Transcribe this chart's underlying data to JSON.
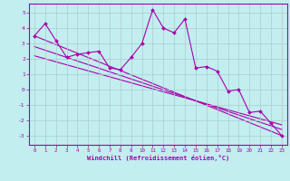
{
  "xlabel": "Windchill (Refroidissement éolien,°C)",
  "bg_color": "#c2eef0",
  "line_color": "#aa00aa",
  "grid_color": "#aacccc",
  "xlim": [
    -0.5,
    23.5
  ],
  "ylim": [
    -3.6,
    5.6
  ],
  "yticks": [
    -3,
    -2,
    -1,
    0,
    1,
    2,
    3,
    4,
    5
  ],
  "xticks": [
    0,
    1,
    2,
    3,
    4,
    5,
    6,
    7,
    8,
    9,
    10,
    11,
    12,
    13,
    14,
    15,
    16,
    17,
    18,
    19,
    20,
    21,
    22,
    23
  ],
  "series1_x": [
    0,
    1,
    2,
    3,
    4,
    5,
    6,
    7,
    8,
    9,
    10,
    11,
    12,
    13,
    14,
    15,
    16,
    17,
    18,
    19,
    20,
    21,
    22,
    23
  ],
  "series1_y": [
    3.5,
    4.3,
    3.2,
    2.1,
    2.3,
    2.4,
    2.5,
    1.4,
    1.3,
    2.1,
    3.0,
    5.2,
    4.0,
    3.7,
    4.6,
    1.4,
    1.5,
    1.2,
    -0.1,
    0.0,
    -1.5,
    -1.4,
    -2.2,
    -3.0
  ],
  "regline1_x": [
    0,
    23
  ],
  "regline1_y": [
    3.5,
    -3.0
  ],
  "regline2_x": [
    0,
    23
  ],
  "regline2_y": [
    2.8,
    -2.6
  ],
  "regline3_x": [
    0,
    23
  ],
  "regline3_y": [
    2.2,
    -2.3
  ]
}
